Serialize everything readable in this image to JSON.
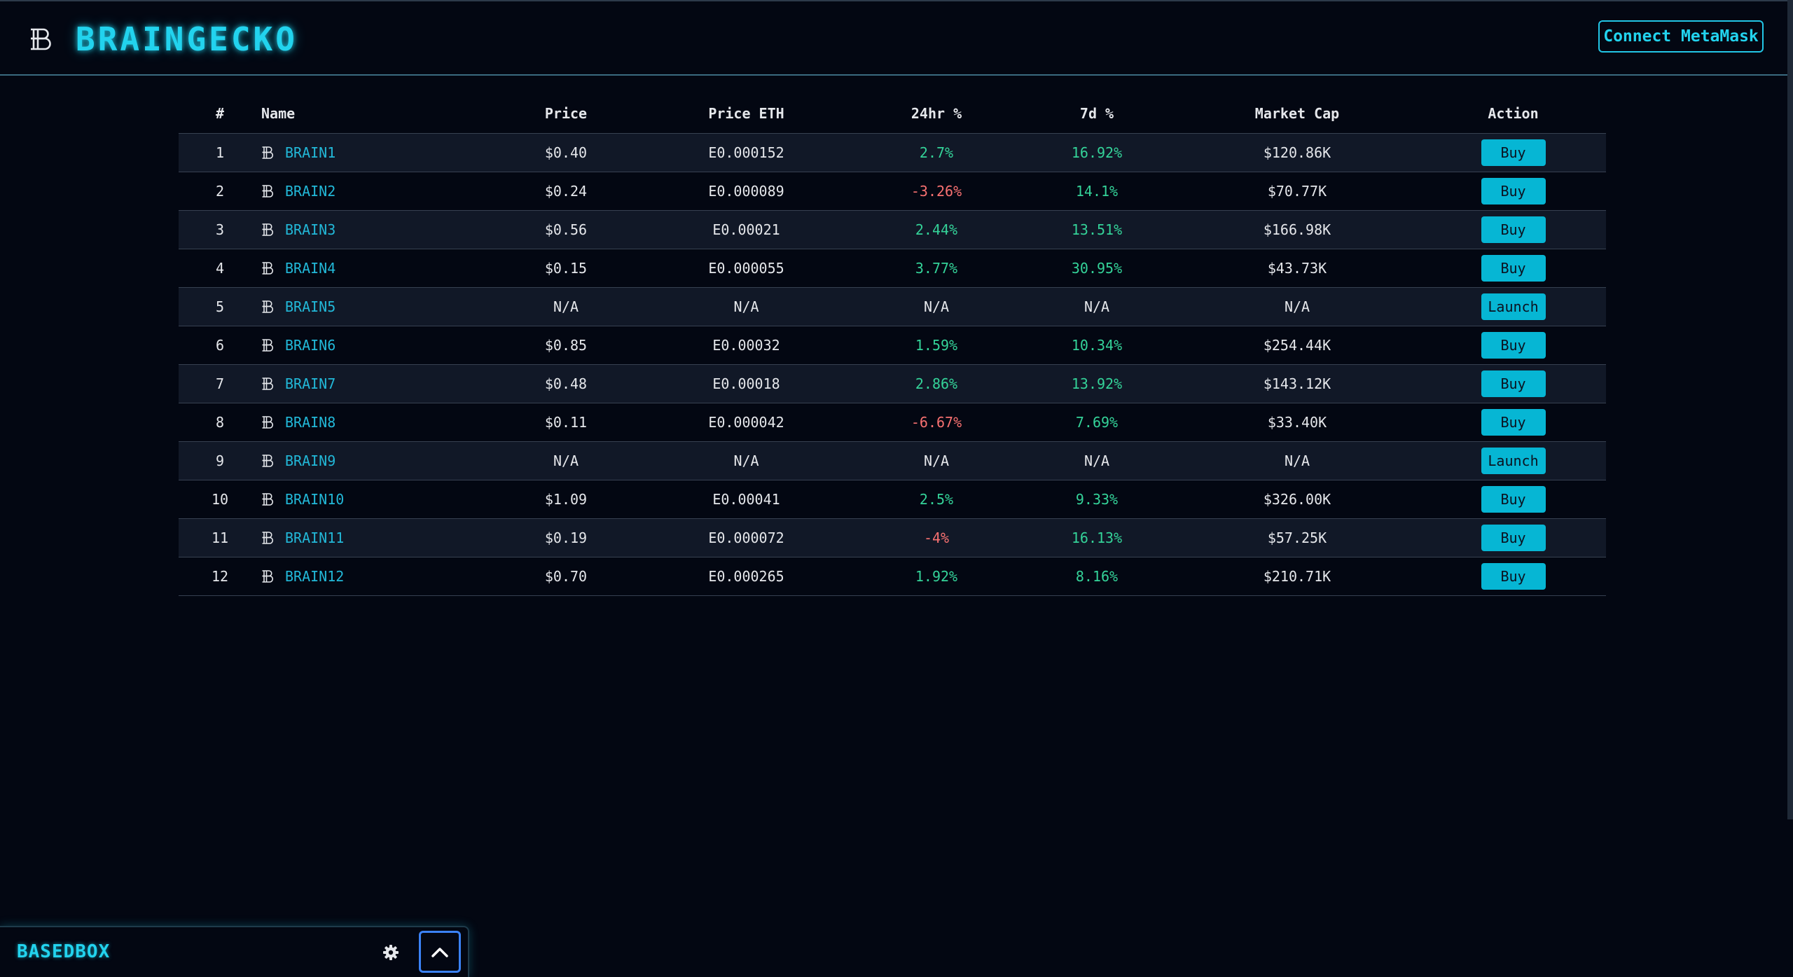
{
  "header": {
    "brand_title": "BRAINGECKO",
    "connect_label": "Connect MetaMask"
  },
  "table": {
    "columns": [
      "#",
      "Name",
      "Price",
      "Price ETH",
      "24hr %",
      "7d %",
      "Market Cap",
      "Action"
    ],
    "rows": [
      {
        "rank": "1",
        "name": "BRAIN1",
        "price": "$0.40",
        "price_eth": "E0.000152",
        "change_24h": "2.7%",
        "change_24h_trend": "up",
        "change_7d": "16.92%",
        "change_7d_trend": "up",
        "market_cap": "$120.86K",
        "action": "Buy"
      },
      {
        "rank": "2",
        "name": "BRAIN2",
        "price": "$0.24",
        "price_eth": "E0.000089",
        "change_24h": "-3.26%",
        "change_24h_trend": "down",
        "change_7d": "14.1%",
        "change_7d_trend": "up",
        "market_cap": "$70.77K",
        "action": "Buy"
      },
      {
        "rank": "3",
        "name": "BRAIN3",
        "price": "$0.56",
        "price_eth": "E0.00021",
        "change_24h": "2.44%",
        "change_24h_trend": "up",
        "change_7d": "13.51%",
        "change_7d_trend": "up",
        "market_cap": "$166.98K",
        "action": "Buy"
      },
      {
        "rank": "4",
        "name": "BRAIN4",
        "price": "$0.15",
        "price_eth": "E0.000055",
        "change_24h": "3.77%",
        "change_24h_trend": "up",
        "change_7d": "30.95%",
        "change_7d_trend": "up",
        "market_cap": "$43.73K",
        "action": "Buy"
      },
      {
        "rank": "5",
        "name": "BRAIN5",
        "price": "N/A",
        "price_eth": "N/A",
        "change_24h": "N/A",
        "change_24h_trend": "na",
        "change_7d": "N/A",
        "change_7d_trend": "na",
        "market_cap": "N/A",
        "action": "Launch"
      },
      {
        "rank": "6",
        "name": "BRAIN6",
        "price": "$0.85",
        "price_eth": "E0.00032",
        "change_24h": "1.59%",
        "change_24h_trend": "up",
        "change_7d": "10.34%",
        "change_7d_trend": "up",
        "market_cap": "$254.44K",
        "action": "Buy"
      },
      {
        "rank": "7",
        "name": "BRAIN7",
        "price": "$0.48",
        "price_eth": "E0.00018",
        "change_24h": "2.86%",
        "change_24h_trend": "up",
        "change_7d": "13.92%",
        "change_7d_trend": "up",
        "market_cap": "$143.12K",
        "action": "Buy"
      },
      {
        "rank": "8",
        "name": "BRAIN8",
        "price": "$0.11",
        "price_eth": "E0.000042",
        "change_24h": "-6.67%",
        "change_24h_trend": "down",
        "change_7d": "7.69%",
        "change_7d_trend": "up",
        "market_cap": "$33.40K",
        "action": "Buy"
      },
      {
        "rank": "9",
        "name": "BRAIN9",
        "price": "N/A",
        "price_eth": "N/A",
        "change_24h": "N/A",
        "change_24h_trend": "na",
        "change_7d": "N/A",
        "change_7d_trend": "na",
        "market_cap": "N/A",
        "action": "Launch"
      },
      {
        "rank": "10",
        "name": "BRAIN10",
        "price": "$1.09",
        "price_eth": "E0.00041",
        "change_24h": "2.5%",
        "change_24h_trend": "up",
        "change_7d": "9.33%",
        "change_7d_trend": "up",
        "market_cap": "$326.00K",
        "action": "Buy"
      },
      {
        "rank": "11",
        "name": "BRAIN11",
        "price": "$0.19",
        "price_eth": "E0.000072",
        "change_24h": "-4%",
        "change_24h_trend": "down",
        "change_7d": "16.13%",
        "change_7d_trend": "up",
        "market_cap": "$57.25K",
        "action": "Buy"
      },
      {
        "rank": "12",
        "name": "BRAIN12",
        "price": "$0.70",
        "price_eth": "E0.000265",
        "change_24h": "1.92%",
        "change_24h_trend": "up",
        "change_7d": "8.16%",
        "change_7d_trend": "up",
        "market_cap": "$210.71K",
        "action": "Buy"
      }
    ]
  },
  "basedbox": {
    "title": "BASEDBOX",
    "settings_icon": "gear-icon",
    "toggle_icon": "chevron-up-icon"
  },
  "icons": {
    "brand": "bitcoin-b-icon",
    "token": "bitcoin-b-icon"
  },
  "colors": {
    "background": "#030712",
    "row_alt": "#111827",
    "accent": "#22d3ee",
    "button": "#06b6d4",
    "positive": "#34d399",
    "negative": "#f87171",
    "link": "#22b8d8"
  }
}
